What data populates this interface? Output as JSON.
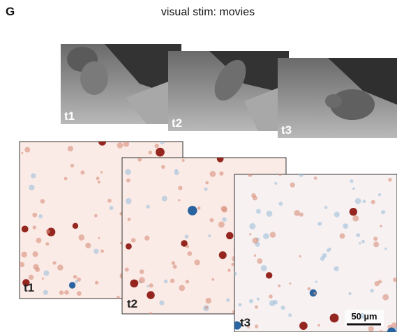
{
  "panel": {
    "label": "G",
    "title": "visual stim: movies"
  },
  "movie_frames": [
    {
      "label": "t1"
    },
    {
      "label": "t2"
    },
    {
      "label": "t3"
    }
  ],
  "imaging_frames": [
    {
      "label": "t1"
    },
    {
      "label": "t2"
    },
    {
      "label": "t3"
    }
  ],
  "scale_bar": {
    "label": "50 µm"
  }
}
